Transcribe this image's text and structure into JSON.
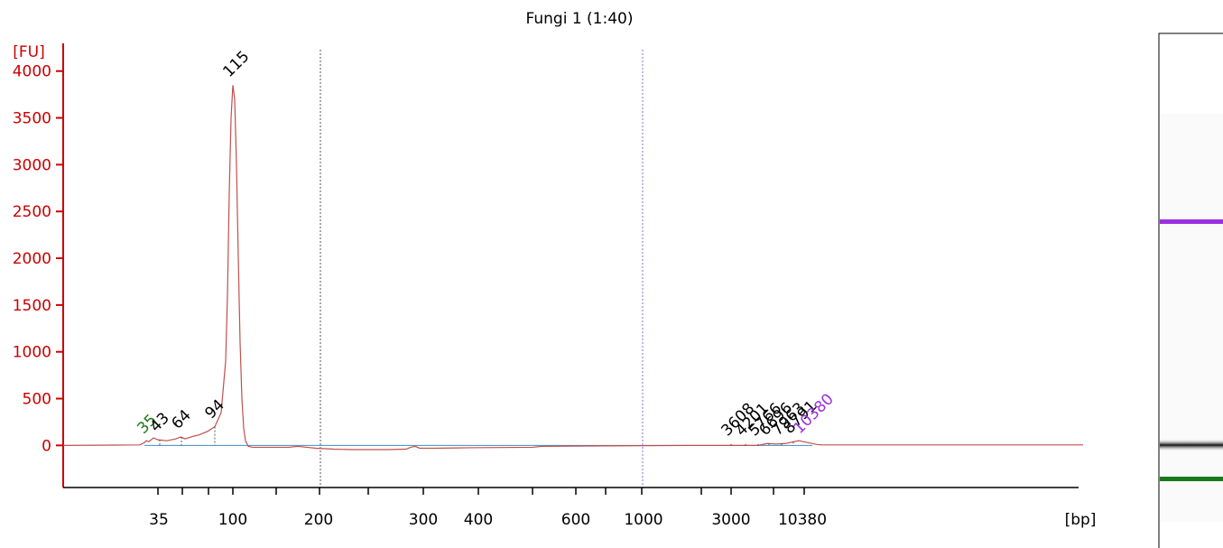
{
  "chart_data": {
    "type": "line",
    "title": "Fungi 1 (1:40)",
    "ylabel": "[FU]",
    "xlabel": "[bp]",
    "ylim": [
      -450,
      4200
    ],
    "y_ticks": [
      0,
      500,
      1000,
      1500,
      2000,
      2500,
      3000,
      3500,
      4000
    ],
    "x_tick_labels": [
      "35",
      "100",
      "200",
      "300",
      "400",
      "600",
      "1000",
      "3000",
      "10380"
    ],
    "colors": {
      "axis": "#cc0000",
      "trace": "#c0504d",
      "lower_marker": "#1a7a1a",
      "upper_marker": "#9b30e0",
      "baseline": "#3d8fc4"
    },
    "series": [
      {
        "points": [
          [
            0,
            0
          ],
          [
            85,
            5
          ],
          [
            90,
            30
          ],
          [
            92,
            50
          ],
          [
            95,
            40
          ],
          [
            100,
            80
          ],
          [
            105,
            60
          ],
          [
            115,
            50
          ],
          [
            125,
            70
          ],
          [
            130,
            90
          ],
          [
            135,
            70
          ],
          [
            145,
            100
          ],
          [
            150,
            110
          ],
          [
            160,
            150
          ],
          [
            168,
            200
          ],
          [
            175,
            350
          ],
          [
            180,
            900
          ],
          [
            182,
            1600
          ],
          [
            184,
            2700
          ],
          [
            186,
            3500
          ],
          [
            188,
            3850
          ],
          [
            190,
            3700
          ],
          [
            192,
            3000
          ],
          [
            194,
            2000
          ],
          [
            196,
            1100
          ],
          [
            198,
            500
          ],
          [
            200,
            180
          ],
          [
            202,
            50
          ],
          [
            205,
            -10
          ],
          [
            210,
            -20
          ],
          [
            250,
            -20
          ],
          [
            260,
            -10
          ],
          [
            270,
            -20
          ],
          [
            280,
            -30
          ],
          [
            300,
            -40
          ],
          [
            320,
            -45
          ],
          [
            360,
            -45
          ],
          [
            380,
            -40
          ],
          [
            385,
            -20
          ],
          [
            390,
            -10
          ],
          [
            395,
            -30
          ],
          [
            410,
            -30
          ],
          [
            450,
            -25
          ],
          [
            520,
            -20
          ],
          [
            530,
            -10
          ],
          [
            600,
            -5
          ],
          [
            700,
            0
          ],
          [
            770,
            0
          ],
          [
            780,
            20
          ],
          [
            790,
            15
          ],
          [
            800,
            20
          ],
          [
            815,
            50
          ],
          [
            820,
            40
          ],
          [
            835,
            10
          ],
          [
            840,
            5
          ],
          [
            1130,
            5
          ]
        ]
      }
    ],
    "peaks": [
      {
        "label": "35",
        "bp_x": 93,
        "fu": 40,
        "kind": "lower_marker"
      },
      {
        "label": "43",
        "bp_x": 107,
        "fu": 60,
        "kind": "peak"
      },
      {
        "label": "64",
        "bp_x": 131,
        "fu": 90,
        "kind": "peak"
      },
      {
        "label": "94",
        "bp_x": 168,
        "fu": 200,
        "kind": "peak"
      },
      {
        "label": "115",
        "bp_x": 188,
        "fu": 3850,
        "kind": "peak"
      },
      {
        "label": "3608",
        "bp_x": 740,
        "fu": 15,
        "kind": "peak"
      },
      {
        "label": "4201",
        "bp_x": 756,
        "fu": 15,
        "kind": "peak"
      },
      {
        "label": "5766",
        "bp_x": 770,
        "fu": 15,
        "kind": "peak"
      },
      {
        "label": "6696",
        "bp_x": 782,
        "fu": 20,
        "kind": "peak"
      },
      {
        "label": "7963",
        "bp_x": 796,
        "fu": 20,
        "kind": "peak"
      },
      {
        "label": "8791",
        "bp_x": 809,
        "fu": 40,
        "kind": "peak"
      },
      {
        "label": "10380",
        "bp_x": 820,
        "fu": 40,
        "kind": "upper_marker"
      }
    ]
  }
}
